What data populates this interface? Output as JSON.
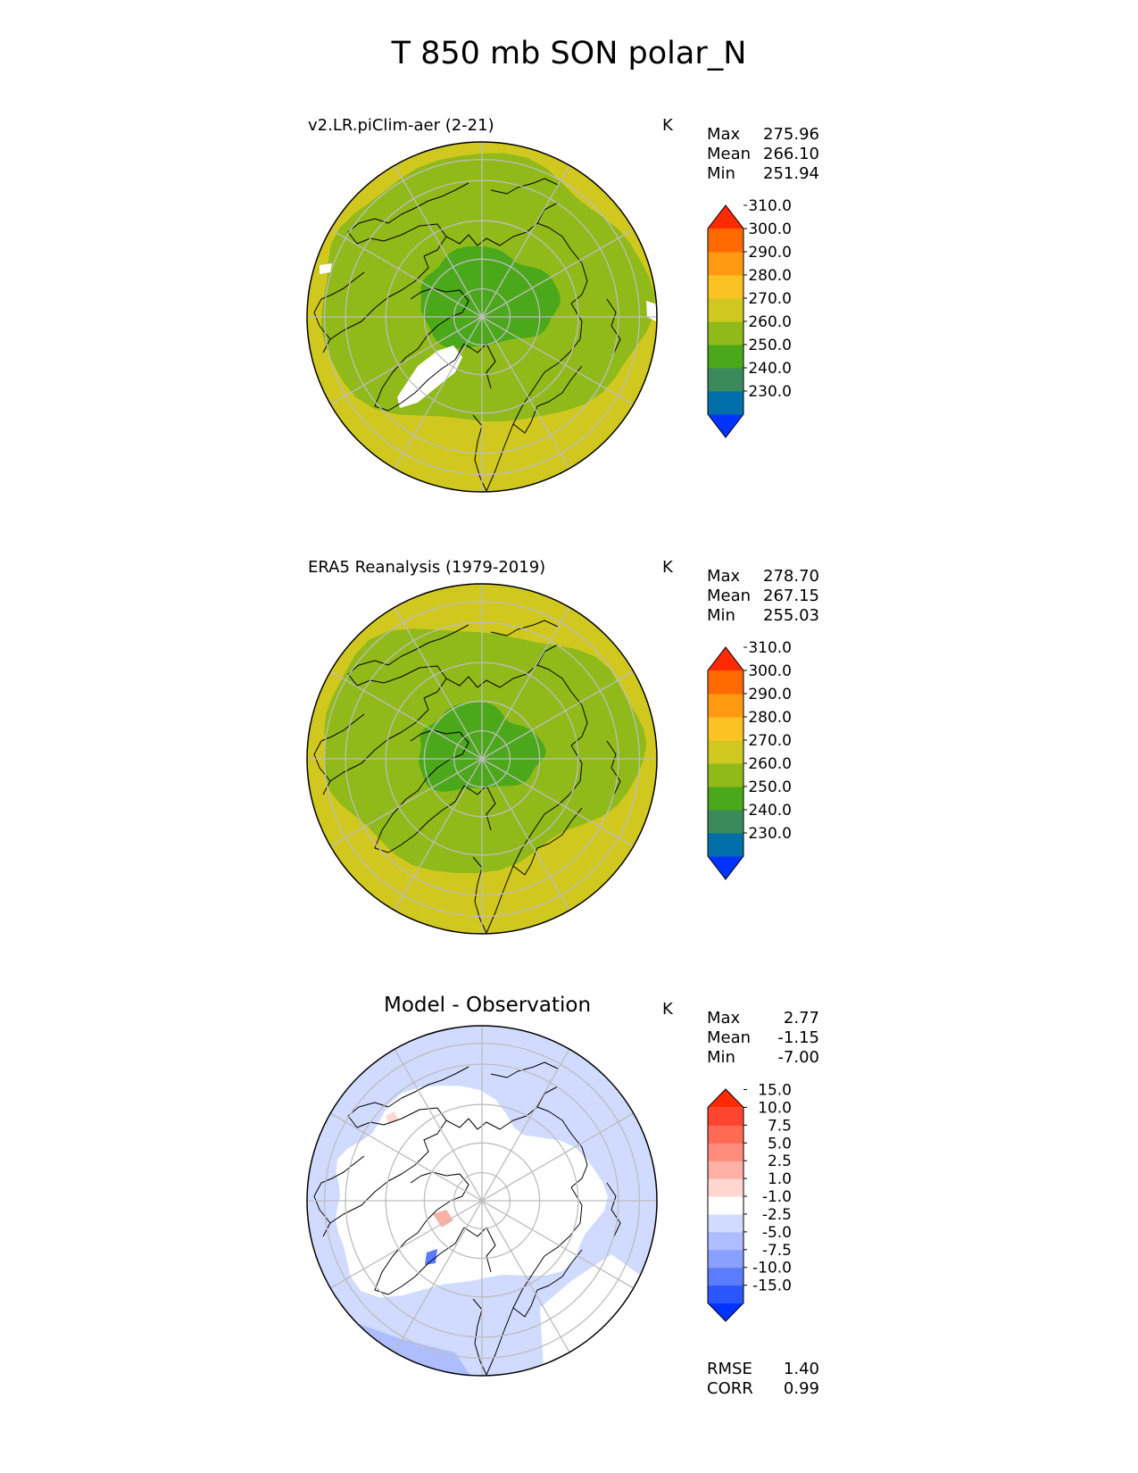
{
  "title": "T 850 mb SON polar_N",
  "colors": {
    "base_cmap": [
      "#0033ff",
      "#006ea8",
      "#3a8a5c",
      "#4ba81a",
      "#8fba1a",
      "#d1c81f",
      "#fbc223",
      "#ff9a10",
      "#ff6a00",
      "#ff2a00"
    ],
    "diff_cmap": [
      "#0033ff",
      "#2b55ff",
      "#5b7cff",
      "#8aa0ff",
      "#aebdff",
      "#d0dbff",
      "#ffffff",
      "#ffd6d0",
      "#ffb0a6",
      "#ff8c7c",
      "#ff6a55",
      "#ff4530",
      "#ff2a00"
    ]
  },
  "panels": [
    {
      "id": "model",
      "title": "v2.LR.piClim-aer (2-21)",
      "units": "K",
      "stats": [
        {
          "label": "Max",
          "value": "275.96"
        },
        {
          "label": "Mean",
          "value": "266.10"
        },
        {
          "label": "Min",
          "value": "251.94"
        }
      ],
      "colorbar_ticks": [
        "230.0",
        "240.0",
        "250.0",
        "260.0",
        "270.0",
        "280.0",
        "290.0",
        "300.0",
        "310.0"
      ],
      "map_kind": "model"
    },
    {
      "id": "obs",
      "title": "ERA5 Reanalysis (1979-2019)",
      "units": "K",
      "stats": [
        {
          "label": "Max",
          "value": "278.70"
        },
        {
          "label": "Mean",
          "value": "267.15"
        },
        {
          "label": "Min",
          "value": "255.03"
        }
      ],
      "colorbar_ticks": [
        "230.0",
        "240.0",
        "250.0",
        "260.0",
        "270.0",
        "280.0",
        "290.0",
        "300.0",
        "310.0"
      ],
      "map_kind": "obs"
    },
    {
      "id": "diff",
      "title": "Model - Observation",
      "units": "K",
      "stats": [
        {
          "label": "Max",
          "value": "2.77"
        },
        {
          "label": "Mean",
          "value": "-1.15"
        },
        {
          "label": "Min",
          "value": "-7.00"
        }
      ],
      "colorbar_ticks": [
        "-15.0",
        "-10.0",
        "-7.5",
        "-5.0",
        "-2.5",
        "-1.0",
        "1.0",
        "2.5",
        "5.0",
        "7.5",
        "10.0",
        "15.0"
      ],
      "metrics": [
        {
          "label": "RMSE",
          "value": "1.40"
        },
        {
          "label": "CORR",
          "value": "0.99"
        }
      ],
      "map_kind": "diff"
    }
  ]
}
